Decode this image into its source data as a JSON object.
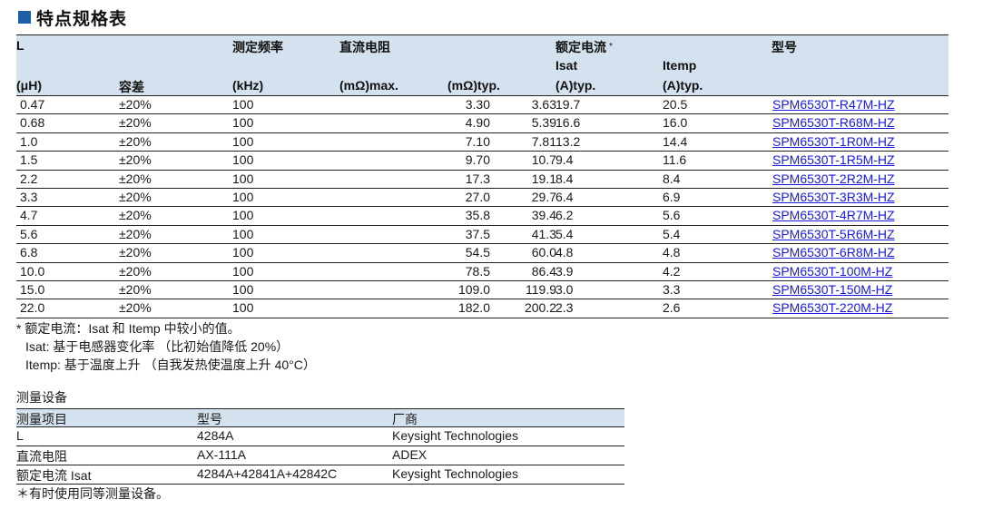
{
  "title": "特点规格表",
  "spec": {
    "headers": {
      "L": "L",
      "freq": "测定频率",
      "dcr": "直流电阻",
      "rated": "额定电流",
      "rated_mark": "*",
      "part": "型号",
      "isat": "Isat",
      "itemp": "Itemp",
      "uh": "(μH)",
      "tol": "容差",
      "khz": "(kHz)",
      "max": "(mΩ)max.",
      "typ": "(mΩ)typ.",
      "isat_unit": "(A)typ.",
      "itemp_unit": "(A)typ."
    },
    "rows": [
      {
        "l": "0.47",
        "tol": "±20%",
        "f": "100",
        "max": "3.63",
        "typ": "3.30",
        "isat": "19.7",
        "itemp": "20.5",
        "part": "SPM6530T-R47M-HZ"
      },
      {
        "l": "0.68",
        "tol": "±20%",
        "f": "100",
        "max": "5.39",
        "typ": "4.90",
        "isat": "16.6",
        "itemp": "16.0",
        "part": "SPM6530T-R68M-HZ"
      },
      {
        "l": "1.0",
        "tol": "±20%",
        "f": "100",
        "max": "7.81",
        "typ": "7.10",
        "isat": "13.2",
        "itemp": "14.4",
        "part": "SPM6530T-1R0M-HZ"
      },
      {
        "l": "1.5",
        "tol": "±20%",
        "f": "100",
        "max": "10.7",
        "typ": "9.70",
        "isat": "9.4",
        "itemp": "11.6",
        "part": "SPM6530T-1R5M-HZ"
      },
      {
        "l": "2.2",
        "tol": "±20%",
        "f": "100",
        "max": "19.1",
        "typ": "17.3",
        "isat": "8.4",
        "itemp": "8.4",
        "part": "SPM6530T-2R2M-HZ"
      },
      {
        "l": "3.3",
        "tol": "±20%",
        "f": "100",
        "max": "29.7",
        "typ": "27.0",
        "isat": "6.4",
        "itemp": "6.9",
        "part": "SPM6530T-3R3M-HZ"
      },
      {
        "l": "4.7",
        "tol": "±20%",
        "f": "100",
        "max": "39.4",
        "typ": "35.8",
        "isat": "6.2",
        "itemp": "5.6",
        "part": "SPM6530T-4R7M-HZ"
      },
      {
        "l": "5.6",
        "tol": "±20%",
        "f": "100",
        "max": "41.3",
        "typ": "37.5",
        "isat": "5.4",
        "itemp": "5.4",
        "part": "SPM6530T-5R6M-HZ"
      },
      {
        "l": "6.8",
        "tol": "±20%",
        "f": "100",
        "max": "60.0",
        "typ": "54.5",
        "isat": "4.8",
        "itemp": "4.8",
        "part": "SPM6530T-6R8M-HZ"
      },
      {
        "l": "10.0",
        "tol": "±20%",
        "f": "100",
        "max": "86.4",
        "typ": "78.5",
        "isat": "3.9",
        "itemp": "4.2",
        "part": "SPM6530T-100M-HZ"
      },
      {
        "l": "15.0",
        "tol": "±20%",
        "f": "100",
        "max": "119.9",
        "typ": "109.0",
        "isat": "3.0",
        "itemp": "3.3",
        "part": "SPM6530T-150M-HZ"
      },
      {
        "l": "22.0",
        "tol": "±20%",
        "f": "100",
        "max": "200.2",
        "typ": "182.0",
        "isat": "2.3",
        "itemp": "2.6",
        "part": "SPM6530T-220M-HZ"
      }
    ]
  },
  "notes": [
    "* 额定电流：Isat 和 Itemp 中较小的值。",
    "Isat: 基于电感器变化率 （比初始值降低 20%）",
    "Itemp: 基于温度上升 （自我发热使温度上升 40°C）"
  ],
  "measure": {
    "title": "测量设备",
    "headers": [
      "测量项目",
      "型号",
      "厂商"
    ],
    "rows": [
      [
        "L",
        "4284A",
        "Keysight Technologies"
      ],
      [
        "直流电阻",
        "AX-111A",
        "ADEX"
      ],
      [
        "额定电流 Isat",
        "4284A+42841A+42842C",
        "Keysight Technologies"
      ]
    ],
    "footnote": "＊有时使用同等测量设备。"
  }
}
